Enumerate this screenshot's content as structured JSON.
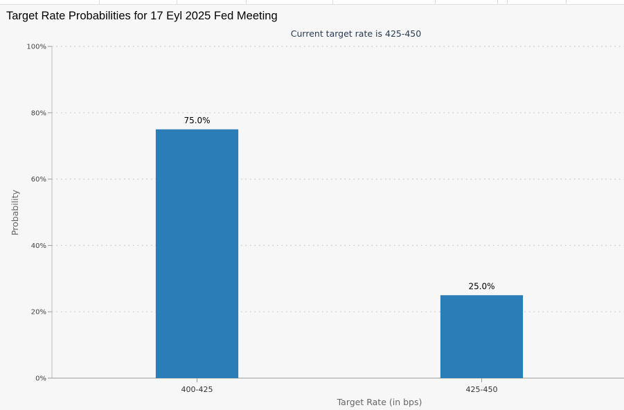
{
  "page": {
    "title": "Target Rate Probabilities for 17 Eyl 2025 Fed Meeting"
  },
  "chart_data": {
    "type": "bar",
    "title": "Target Rate Probabilities for 17 Eyl 2025 Fed Meeting",
    "subtitle": "Current target rate is 425-450",
    "categories": [
      "400-425",
      "425-450"
    ],
    "values": [
      75.0,
      25.0
    ],
    "data_labels": [
      "75.0%",
      "25.0%"
    ],
    "xlabel": "Target Rate (in bps)",
    "ylabel": "Probability",
    "ylim": [
      0,
      100
    ],
    "yticks": [
      0,
      20,
      40,
      60,
      80,
      100
    ],
    "ytick_labels": [
      "0%",
      "20%",
      "40%",
      "60%",
      "80%",
      "100%"
    ],
    "grid": "horizontal-dotted",
    "legend": "none",
    "bar_color": "#2a7db6"
  }
}
